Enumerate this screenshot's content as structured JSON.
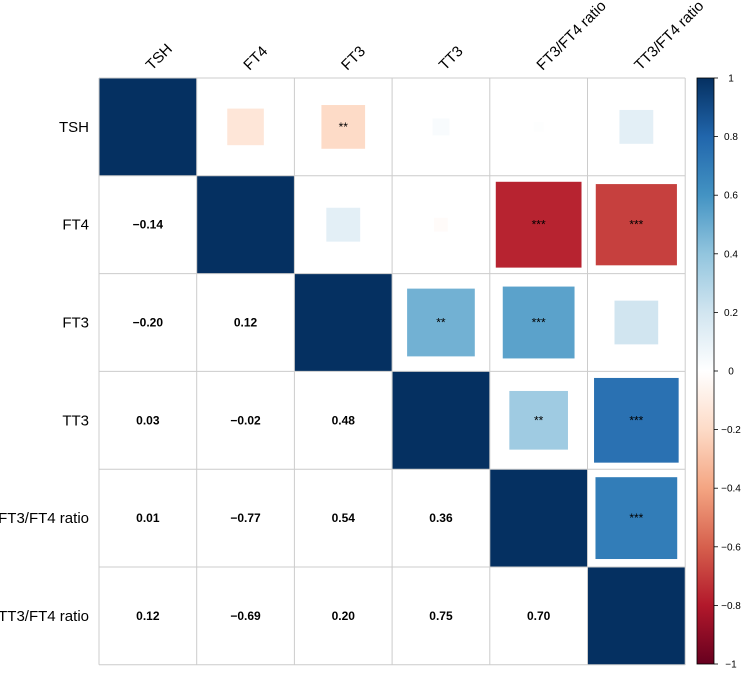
{
  "chart_data": {
    "type": "heatmap",
    "variables": [
      "TSH",
      "FT4",
      "FT3",
      "TT3",
      "FT3/FT4 ratio",
      "TT3/FT4 ratio"
    ],
    "matrix": [
      [
        1.0,
        -0.14,
        -0.2,
        0.03,
        0.01,
        0.12
      ],
      [
        -0.14,
        1.0,
        0.12,
        -0.02,
        -0.77,
        -0.69
      ],
      [
        -0.2,
        0.12,
        1.0,
        0.48,
        0.54,
        0.2
      ],
      [
        0.03,
        -0.02,
        0.48,
        1.0,
        0.36,
        0.75
      ],
      [
        0.01,
        -0.77,
        0.54,
        0.36,
        1.0,
        0.7
      ],
      [
        0.12,
        -0.69,
        0.2,
        0.75,
        0.7,
        1.0
      ]
    ],
    "matrix_labels": [
      [
        "",
        "",
        "",
        "",
        "",
        ""
      ],
      [
        "−0.14",
        "",
        "",
        "",
        "",
        ""
      ],
      [
        "−0.20",
        "0.12",
        "",
        "",
        "",
        ""
      ],
      [
        "0.03",
        "−0.02",
        "0.48",
        "",
        "",
        ""
      ],
      [
        "0.01",
        "−0.77",
        "0.54",
        "0.36",
        "",
        ""
      ],
      [
        "0.12",
        "−0.69",
        "0.20",
        "0.75",
        "0.70",
        ""
      ]
    ],
    "significance": [
      [
        "",
        "",
        "**",
        "",
        "",
        ""
      ],
      [
        "",
        "",
        "",
        "",
        "***",
        "***"
      ],
      [
        "",
        "",
        "",
        "**",
        "***",
        ""
      ],
      [
        "",
        "",
        "",
        "",
        "**",
        "***"
      ],
      [
        "",
        "",
        "",
        "",
        "",
        "***"
      ],
      [
        "",
        "",
        "",
        "",
        "",
        ""
      ]
    ],
    "lower_triangle": "numbers",
    "upper_triangle": "squares",
    "colorbar": {
      "range": [
        -1,
        1
      ],
      "ticks": [
        -1,
        -0.8,
        -0.6,
        -0.4,
        -0.2,
        0,
        0.2,
        0.4,
        0.6,
        0.8,
        1
      ],
      "tick_labels": [
        "−1",
        "−0.8",
        "−0.6",
        "−0.4",
        "−0.2",
        "0",
        "0.2",
        "0.4",
        "0.6",
        "0.8",
        "1"
      ],
      "colors": [
        "#67001f",
        "#b2182b",
        "#d6604d",
        "#f4a582",
        "#fddbc7",
        "#ffffff",
        "#d1e5f0",
        "#92c5de",
        "#4393c3",
        "#2166ac",
        "#053061"
      ]
    },
    "grid": true
  }
}
